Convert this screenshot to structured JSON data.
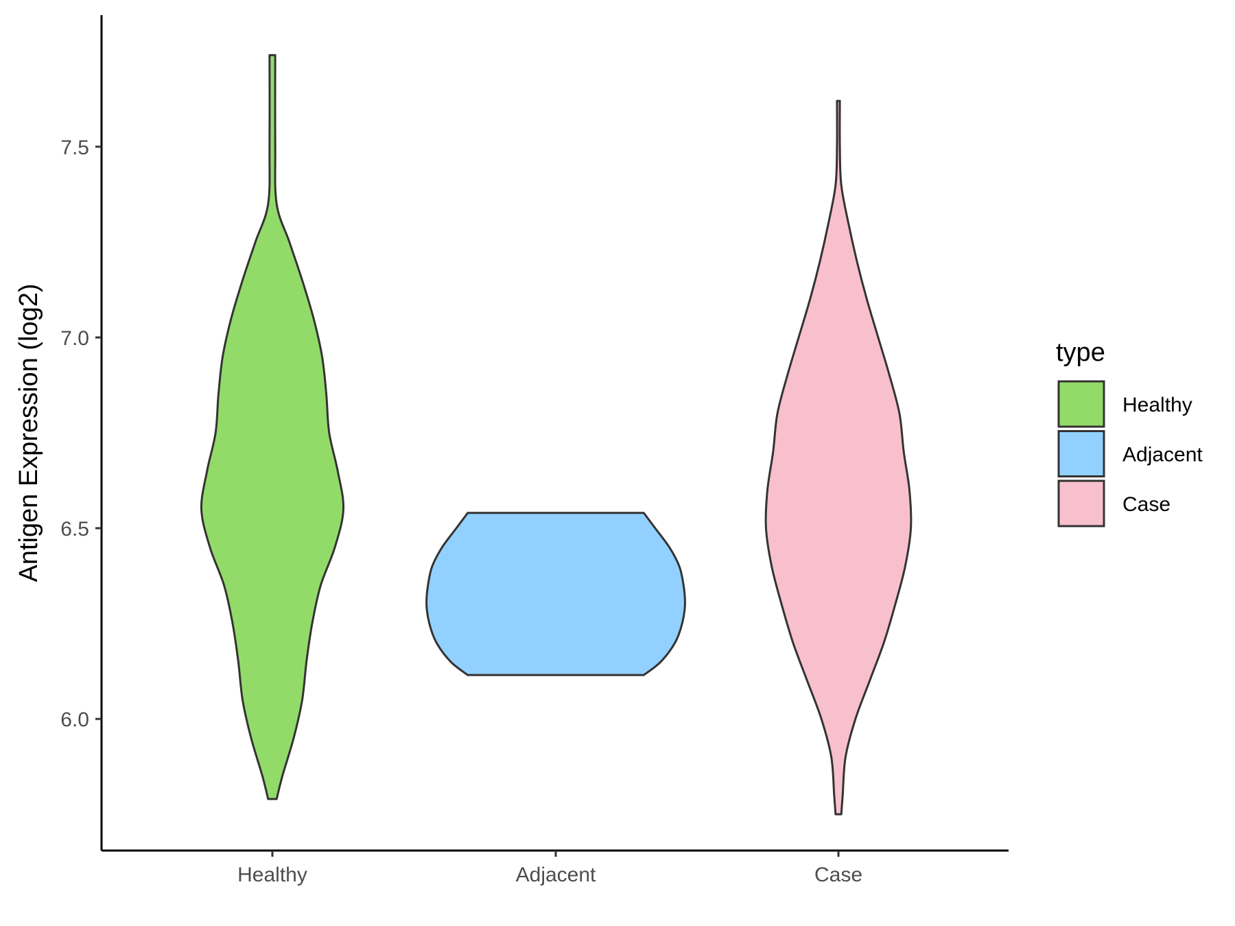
{
  "chart_data": {
    "type": "violin",
    "title": "",
    "xlabel": "",
    "ylabel": "Antigen Expression (log2)",
    "ylim": [
      5.655,
      7.845
    ],
    "yticks": [
      6.0,
      6.5,
      7.0,
      7.5
    ],
    "ytick_labels": [
      "6.0",
      "6.5",
      "7.0",
      "7.5"
    ],
    "categories": [
      "Healthy",
      "Adjacent",
      "Case"
    ],
    "grid": false,
    "legend": {
      "title": "type",
      "position": "right",
      "entries": [
        "Healthy",
        "Adjacent",
        "Case"
      ]
    },
    "series": [
      {
        "name": "Healthy",
        "color": "#93DB69",
        "range": [
          5.79,
          7.74
        ],
        "density": [
          [
            5.79,
            0.03
          ],
          [
            5.85,
            0.07
          ],
          [
            5.95,
            0.15
          ],
          [
            6.05,
            0.21
          ],
          [
            6.15,
            0.24
          ],
          [
            6.25,
            0.28
          ],
          [
            6.35,
            0.34
          ],
          [
            6.45,
            0.44
          ],
          [
            6.55,
            0.5
          ],
          [
            6.65,
            0.46
          ],
          [
            6.75,
            0.4
          ],
          [
            6.85,
            0.38
          ],
          [
            6.95,
            0.35
          ],
          [
            7.05,
            0.29
          ],
          [
            7.15,
            0.21
          ],
          [
            7.25,
            0.12
          ],
          [
            7.35,
            0.03
          ],
          [
            7.5,
            0.02
          ],
          [
            7.74,
            0.02
          ]
        ]
      },
      {
        "name": "Adjacent",
        "color": "#92D1FF",
        "range": [
          6.115,
          6.54
        ],
        "density": [
          [
            6.115,
            0.62
          ],
          [
            6.15,
            0.74
          ],
          [
            6.2,
            0.84
          ],
          [
            6.25,
            0.89
          ],
          [
            6.3,
            0.91
          ],
          [
            6.35,
            0.9
          ],
          [
            6.4,
            0.87
          ],
          [
            6.45,
            0.8
          ],
          [
            6.5,
            0.7
          ],
          [
            6.54,
            0.62
          ]
        ]
      },
      {
        "name": "Case",
        "color": "#F7C0CC",
        "range": [
          5.75,
          7.62
        ],
        "density": [
          [
            5.75,
            0.02
          ],
          [
            5.8,
            0.03
          ],
          [
            5.9,
            0.05
          ],
          [
            6.0,
            0.12
          ],
          [
            6.1,
            0.22
          ],
          [
            6.2,
            0.32
          ],
          [
            6.3,
            0.4
          ],
          [
            6.4,
            0.47
          ],
          [
            6.5,
            0.51
          ],
          [
            6.6,
            0.5
          ],
          [
            6.7,
            0.46
          ],
          [
            6.8,
            0.43
          ],
          [
            6.9,
            0.36
          ],
          [
            7.0,
            0.28
          ],
          [
            7.1,
            0.2
          ],
          [
            7.2,
            0.13
          ],
          [
            7.3,
            0.07
          ],
          [
            7.4,
            0.02
          ],
          [
            7.5,
            0.01
          ],
          [
            7.62,
            0.01
          ]
        ]
      }
    ]
  }
}
